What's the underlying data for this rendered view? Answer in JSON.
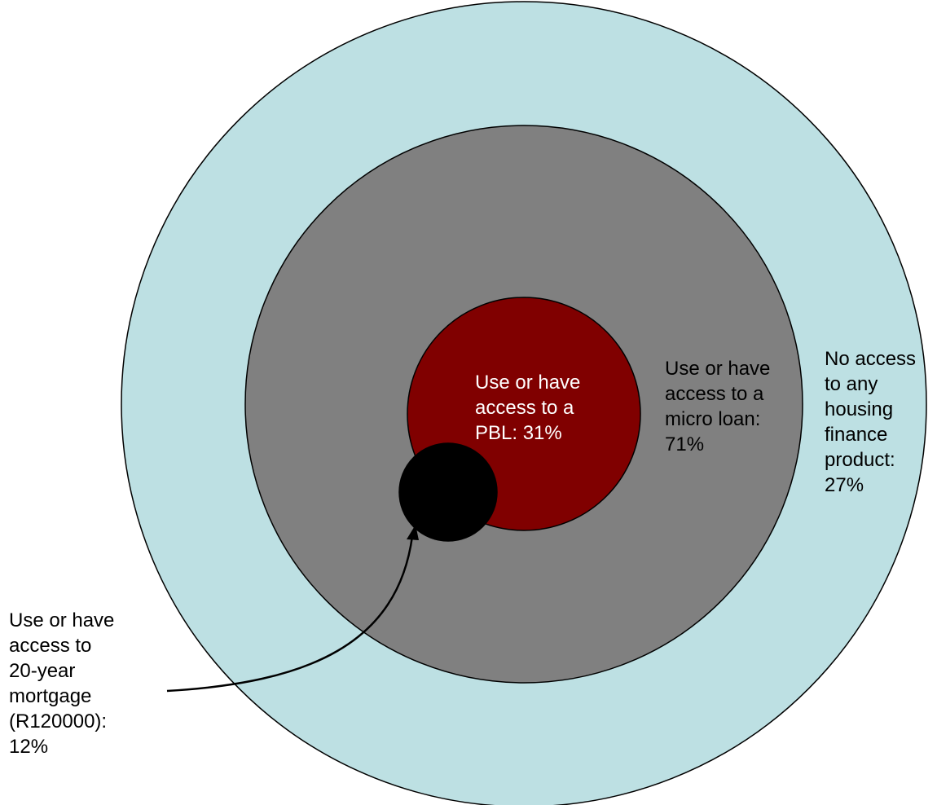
{
  "diagram": {
    "type": "nested-circles",
    "colors": {
      "outer": "#bde0e3",
      "middle": "#808080",
      "inner": "#800000",
      "mortgage": "#000000",
      "stroke": "#000000",
      "inner_label_text": "#ffffff",
      "label_text": "#000000"
    },
    "labels": {
      "no_access": "No access\nto any\nhousing\nfinance\nproduct:\n27%",
      "micro_loan": "Use or have\naccess to a\nmicro loan:\n71%",
      "pbl": "Use or have\naccess to a\nPBL: 31%",
      "mortgage": "Use or have\naccess to\n20-year\nmortgage\n(R120000):\n12%"
    }
  }
}
